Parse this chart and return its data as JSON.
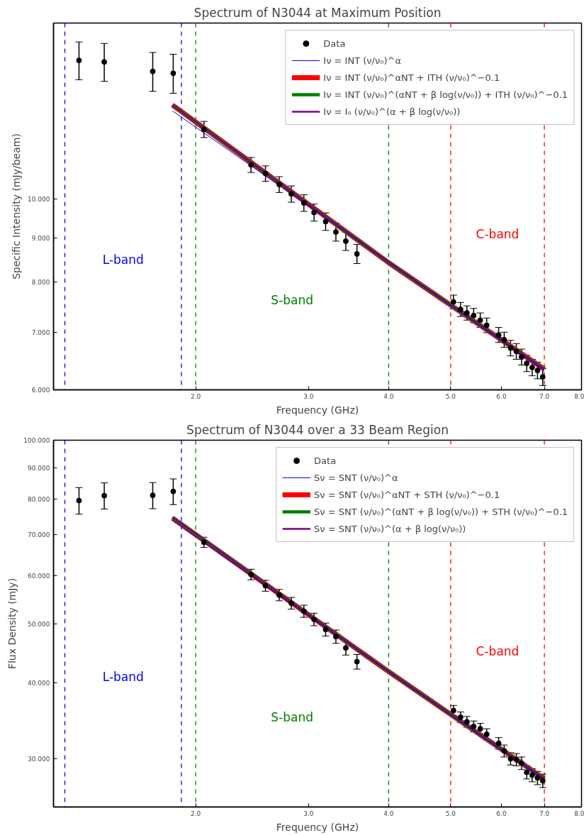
{
  "chart_data": [
    {
      "type": "line",
      "title": "Spectrum of N3044 at Maximum Position",
      "xlabel": "Frequency (GHz)",
      "ylabel": "Specific Intensity (mJy/beam)",
      "log": "xy",
      "grid": false,
      "legend": "top right",
      "xlim": [
        1.2,
        8.0
      ],
      "ylim": [
        6.0,
        16.0
      ],
      "xticks": [
        {
          "value": 2,
          "label": "2.0"
        },
        {
          "value": 3,
          "label": "3.0"
        },
        {
          "value": 4,
          "label": "4.0"
        },
        {
          "value": 5,
          "label": "5.0"
        },
        {
          "value": 6,
          "label": "6.0"
        },
        {
          "value": 7,
          "label": "7.0"
        },
        {
          "value": 8,
          "label": "8.0"
        }
      ],
      "yticks": [
        {
          "value": 6,
          "label": "6.000"
        },
        {
          "value": 7,
          "label": "7.000"
        },
        {
          "value": 8,
          "label": "8.000"
        },
        {
          "value": 9,
          "label": "9.000"
        },
        {
          "value": 10,
          "label": "10.000"
        }
      ],
      "ref_lines": [
        {
          "axis": "x",
          "value": 1.25,
          "color": "#0000ff",
          "line_style": "dashed"
        },
        {
          "axis": "x",
          "value": 1.9,
          "color": "#0000ff",
          "line_style": "dashed"
        },
        {
          "axis": "x",
          "value": 2.0,
          "color": "#008000",
          "line_style": "dashed"
        },
        {
          "axis": "x",
          "value": 4.0,
          "color": "#008000",
          "line_style": "dashed"
        },
        {
          "axis": "x",
          "value": 5.0,
          "color": "#ff0000",
          "line_style": "dashed"
        },
        {
          "axis": "x",
          "value": 7.0,
          "color": "#ff0000",
          "line_style": "dashed"
        }
      ],
      "annotations": [
        "L-band",
        "S-band",
        "C-band"
      ],
      "series": [
        {
          "name": "Data",
          "type": "scatter",
          "marker": "circle",
          "color": "#000000",
          "x": [
            1.315,
            1.44,
            1.714,
            1.845,
            2.06,
            2.44,
            2.57,
            2.7,
            2.82,
            2.95,
            3.06,
            3.19,
            3.31,
            3.43,
            3.57,
            5.05,
            5.18,
            5.3,
            5.43,
            5.56,
            5.69,
            5.94,
            6.06,
            6.2,
            6.33,
            6.45,
            6.57,
            6.7,
            6.83,
            6.96
          ],
          "values": [
            14.48,
            14.42,
            14.06,
            13.99,
            12.04,
            10.95,
            10.7,
            10.39,
            10.13,
            9.89,
            9.64,
            9.41,
            9.15,
            8.93,
            8.63,
            7.59,
            7.44,
            7.37,
            7.32,
            7.23,
            7.13,
            6.95,
            6.86,
            6.71,
            6.65,
            6.55,
            6.44,
            6.37,
            6.32,
            6.21
          ],
          "errors": [
            0.73,
            0.73,
            0.73,
            0.73,
            0.26,
            0.22,
            0.22,
            0.22,
            0.22,
            0.22,
            0.22,
            0.22,
            0.22,
            0.22,
            0.22,
            0.14,
            0.14,
            0.14,
            0.14,
            0.14,
            0.14,
            0.14,
            0.14,
            0.14,
            0.14,
            0.14,
            0.14,
            0.14,
            0.14,
            0.14
          ]
        },
        {
          "name": "Iν = INT (ν/ν₀)^α",
          "color": "#0000ff",
          "x": [
            1.84,
            4.0,
            7.0
          ],
          "values": [
            12.65,
            8.45,
            6.31
          ]
        },
        {
          "name": "Iν = INT (ν/ν₀)^αNT + ITH (ν/ν₀)^−0.1",
          "color": "#ff0000",
          "x": [
            1.84,
            4.0,
            7.0
          ],
          "values": [
            12.85,
            8.43,
            6.34
          ]
        },
        {
          "name": "Iν = INT (ν/ν₀)^(αNT + β log(ν/ν₀)) + ITH (ν/ν₀)^−0.1",
          "color": "#008000",
          "x": [
            1.84,
            4.0,
            7.0
          ],
          "values": [
            12.85,
            8.43,
            6.34
          ]
        },
        {
          "name": "Iν = I₀ (ν/ν₀)^(α + β log(ν/ν₀))",
          "color": "#800080",
          "x": [
            1.84,
            4.0,
            7.0
          ],
          "values": [
            12.85,
            8.43,
            6.34
          ]
        }
      ]
    },
    {
      "type": "line",
      "title": "Spectrum of N3044 over a 33 Beam Region",
      "xlabel": "Frequency (GHz)",
      "ylabel": "Flux Density (mJy)",
      "log": "xy",
      "grid": false,
      "legend": "top right",
      "xlim": [
        1.2,
        8.0
      ],
      "ylim": [
        25.0,
        100.0
      ],
      "xticks": [
        {
          "value": 2,
          "label": "2.0"
        },
        {
          "value": 3,
          "label": "3.0"
        },
        {
          "value": 4,
          "label": "4.0"
        },
        {
          "value": 5,
          "label": "5.0"
        },
        {
          "value": 6,
          "label": "6.0"
        },
        {
          "value": 7,
          "label": "7.0"
        },
        {
          "value": 8,
          "label": "8.0"
        }
      ],
      "yticks": [
        {
          "value": 30,
          "label": "30.000"
        },
        {
          "value": 40,
          "label": "40.000"
        },
        {
          "value": 50,
          "label": "50.000"
        },
        {
          "value": 60,
          "label": "60.000"
        },
        {
          "value": 70,
          "label": "70.000"
        },
        {
          "value": 80,
          "label": "80.000"
        },
        {
          "value": 90,
          "label": "90.000"
        },
        {
          "value": 100,
          "label": "100.000"
        }
      ],
      "ref_lines": [
        {
          "axis": "x",
          "value": 1.25,
          "color": "#0000ff",
          "line_style": "dashed"
        },
        {
          "axis": "x",
          "value": 1.9,
          "color": "#0000ff",
          "line_style": "dashed"
        },
        {
          "axis": "x",
          "value": 2.0,
          "color": "#008000",
          "line_style": "dashed"
        },
        {
          "axis": "x",
          "value": 4.0,
          "color": "#008000",
          "line_style": "dashed"
        },
        {
          "axis": "x",
          "value": 5.0,
          "color": "#ff0000",
          "line_style": "dashed"
        },
        {
          "axis": "x",
          "value": 7.0,
          "color": "#ff0000",
          "line_style": "dashed"
        }
      ],
      "annotations": [
        "L-band",
        "S-band",
        "C-band"
      ],
      "series": [
        {
          "name": "Data",
          "type": "scatter",
          "marker": "circle",
          "color": "#000000",
          "x": [
            1.315,
            1.44,
            1.714,
            1.845,
            2.06,
            2.44,
            2.57,
            2.7,
            2.82,
            2.95,
            3.06,
            3.19,
            3.31,
            3.43,
            3.57,
            5.05,
            5.18,
            5.3,
            5.43,
            5.56,
            5.69,
            5.94,
            6.06,
            6.2,
            6.33,
            6.45,
            6.57,
            6.7,
            6.83,
            6.96
          ],
          "values": [
            79.6,
            81.1,
            81.2,
            82.4,
            68.0,
            60.2,
            57.7,
            55.7,
            54.0,
            52.4,
            50.8,
            48.9,
            47.6,
            45.6,
            43.3,
            36.0,
            35.1,
            34.5,
            33.9,
            33.6,
            32.9,
            31.8,
            30.9,
            30.0,
            29.9,
            29.5,
            28.5,
            28.2,
            27.9,
            27.6
          ],
          "errors": [
            4.0,
            4.0,
            4.0,
            4.0,
            1.3,
            1.2,
            1.2,
            1.2,
            1.2,
            1.2,
            1.2,
            1.2,
            1.2,
            1.2,
            1.2,
            0.7,
            0.7,
            0.7,
            0.7,
            0.7,
            0.7,
            0.7,
            0.7,
            0.7,
            0.7,
            0.7,
            0.7,
            0.7,
            0.7,
            0.7
          ]
        },
        {
          "name": "Sν = SNT (ν/ν₀)^α",
          "color": "#0000ff",
          "x": [
            1.84,
            4.0,
            7.0
          ],
          "values": [
            73.8,
            41.7,
            27.7
          ]
        },
        {
          "name": "Sν = SNT (ν/ν₀)^αNT + STH (ν/ν₀)^−0.1",
          "color": "#ff0000",
          "x": [
            1.84,
            4.0,
            7.0
          ],
          "values": [
            74.5,
            41.7,
            27.8
          ]
        },
        {
          "name": "Sν = SNT (ν/ν₀)^(αNT + β log(ν/ν₀)) + STH (ν/ν₀)^−0.1",
          "color": "#008000",
          "x": [
            1.84,
            4.0,
            7.0
          ],
          "values": [
            74.7,
            41.7,
            27.8
          ]
        },
        {
          "name": "Sν = SNT (ν/ν₀)^(α + β log(ν/ν₀))",
          "color": "#800080",
          "x": [
            1.84,
            4.0,
            7.0
          ],
          "values": [
            74.7,
            41.7,
            27.8
          ]
        }
      ]
    }
  ]
}
